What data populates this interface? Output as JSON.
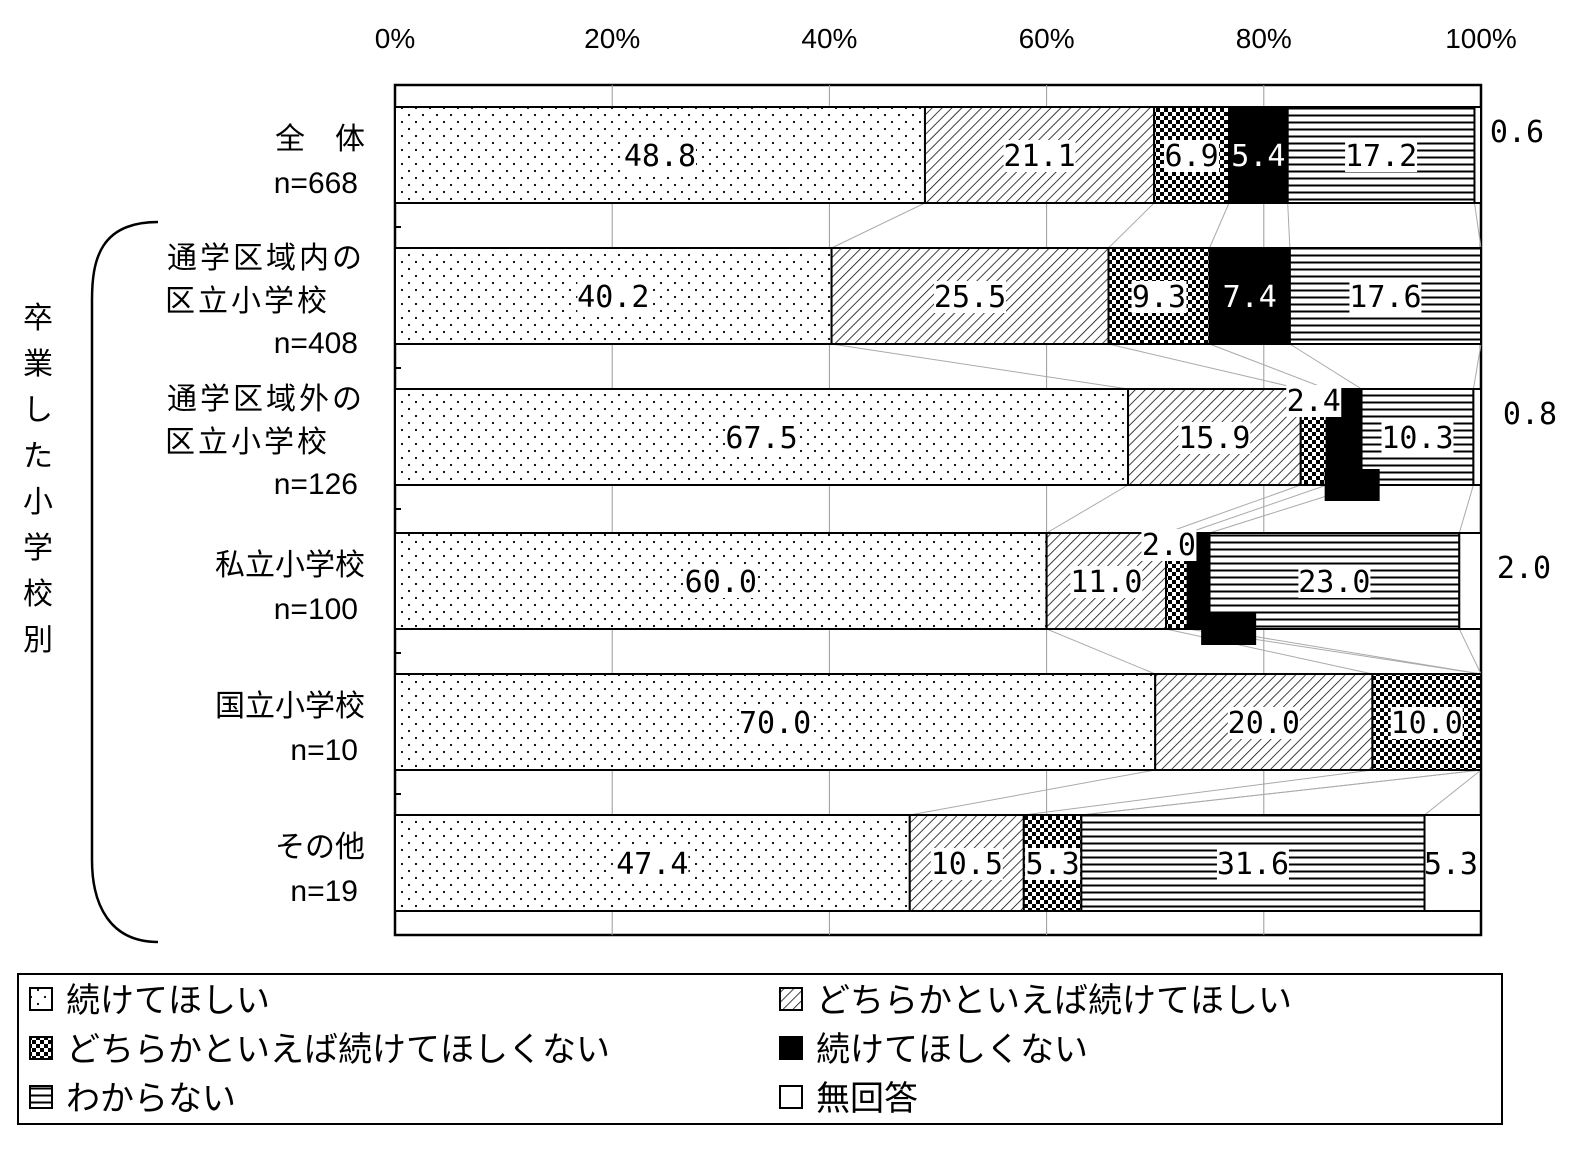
{
  "chart_data": {
    "type": "bar",
    "orientation": "horizontal",
    "stacked": "100%",
    "x_ticks": [
      "0%",
      "20%",
      "40%",
      "60%",
      "80%",
      "100%"
    ],
    "xlim": [
      0,
      100
    ],
    "grid": true,
    "legend_position": "bottom",
    "group_label": "卒業した小学校別",
    "categories": [
      {
        "name": "全　体",
        "n": "n=668"
      },
      {
        "name": "通学区域内の\n区立小学校",
        "n": "n=408"
      },
      {
        "name": "通学区域外の\n区立小学校",
        "n": "n=126"
      },
      {
        "name": "私立小学校",
        "n": "n=100"
      },
      {
        "name": "国立小学校",
        "n": "n=10"
      },
      {
        "name": "その他",
        "n": "n=19"
      }
    ],
    "series": [
      {
        "name": "続けてほしい",
        "pattern": "dots",
        "values": [
          48.8,
          40.2,
          67.5,
          60.0,
          70.0,
          47.4
        ],
        "labels": [
          "48.8",
          "40.2",
          "67.5",
          "60.0",
          "70.0",
          "47.4"
        ]
      },
      {
        "name": "どちらかといえば続けてほしい",
        "pattern": "diagonal",
        "values": [
          21.1,
          25.5,
          15.9,
          11.0,
          20.0,
          10.5
        ],
        "labels": [
          "21.1",
          "25.5",
          "15.9",
          "11.0",
          "20.0",
          "10.5"
        ]
      },
      {
        "name": "どちらかといえば続けてほしくない",
        "pattern": "checker",
        "values": [
          6.9,
          9.3,
          2.4,
          2.0,
          10.0,
          5.3
        ],
        "labels": [
          "6.9",
          "9.3",
          "2.4",
          "2.0",
          "10.0",
          "5.3"
        ]
      },
      {
        "name": "続けてほしくない",
        "pattern": "solid",
        "values": [
          5.4,
          7.4,
          3.2,
          2.0,
          0,
          0
        ],
        "labels": [
          "5.4",
          "7.4",
          "3.2",
          "2.0",
          "",
          ""
        ]
      },
      {
        "name": "わからない",
        "pattern": "horizontal",
        "values": [
          17.2,
          17.6,
          10.3,
          23.0,
          0,
          31.6
        ],
        "labels": [
          "17.2",
          "17.6",
          "10.3",
          "23.0",
          "",
          "31.6"
        ]
      },
      {
        "name": "無回答",
        "pattern": "blank",
        "values": [
          0.6,
          0,
          0.8,
          2.0,
          0,
          5.3
        ],
        "labels": [
          "0.6",
          "",
          "0.8",
          "2.0",
          "",
          "5.3"
        ]
      }
    ]
  }
}
